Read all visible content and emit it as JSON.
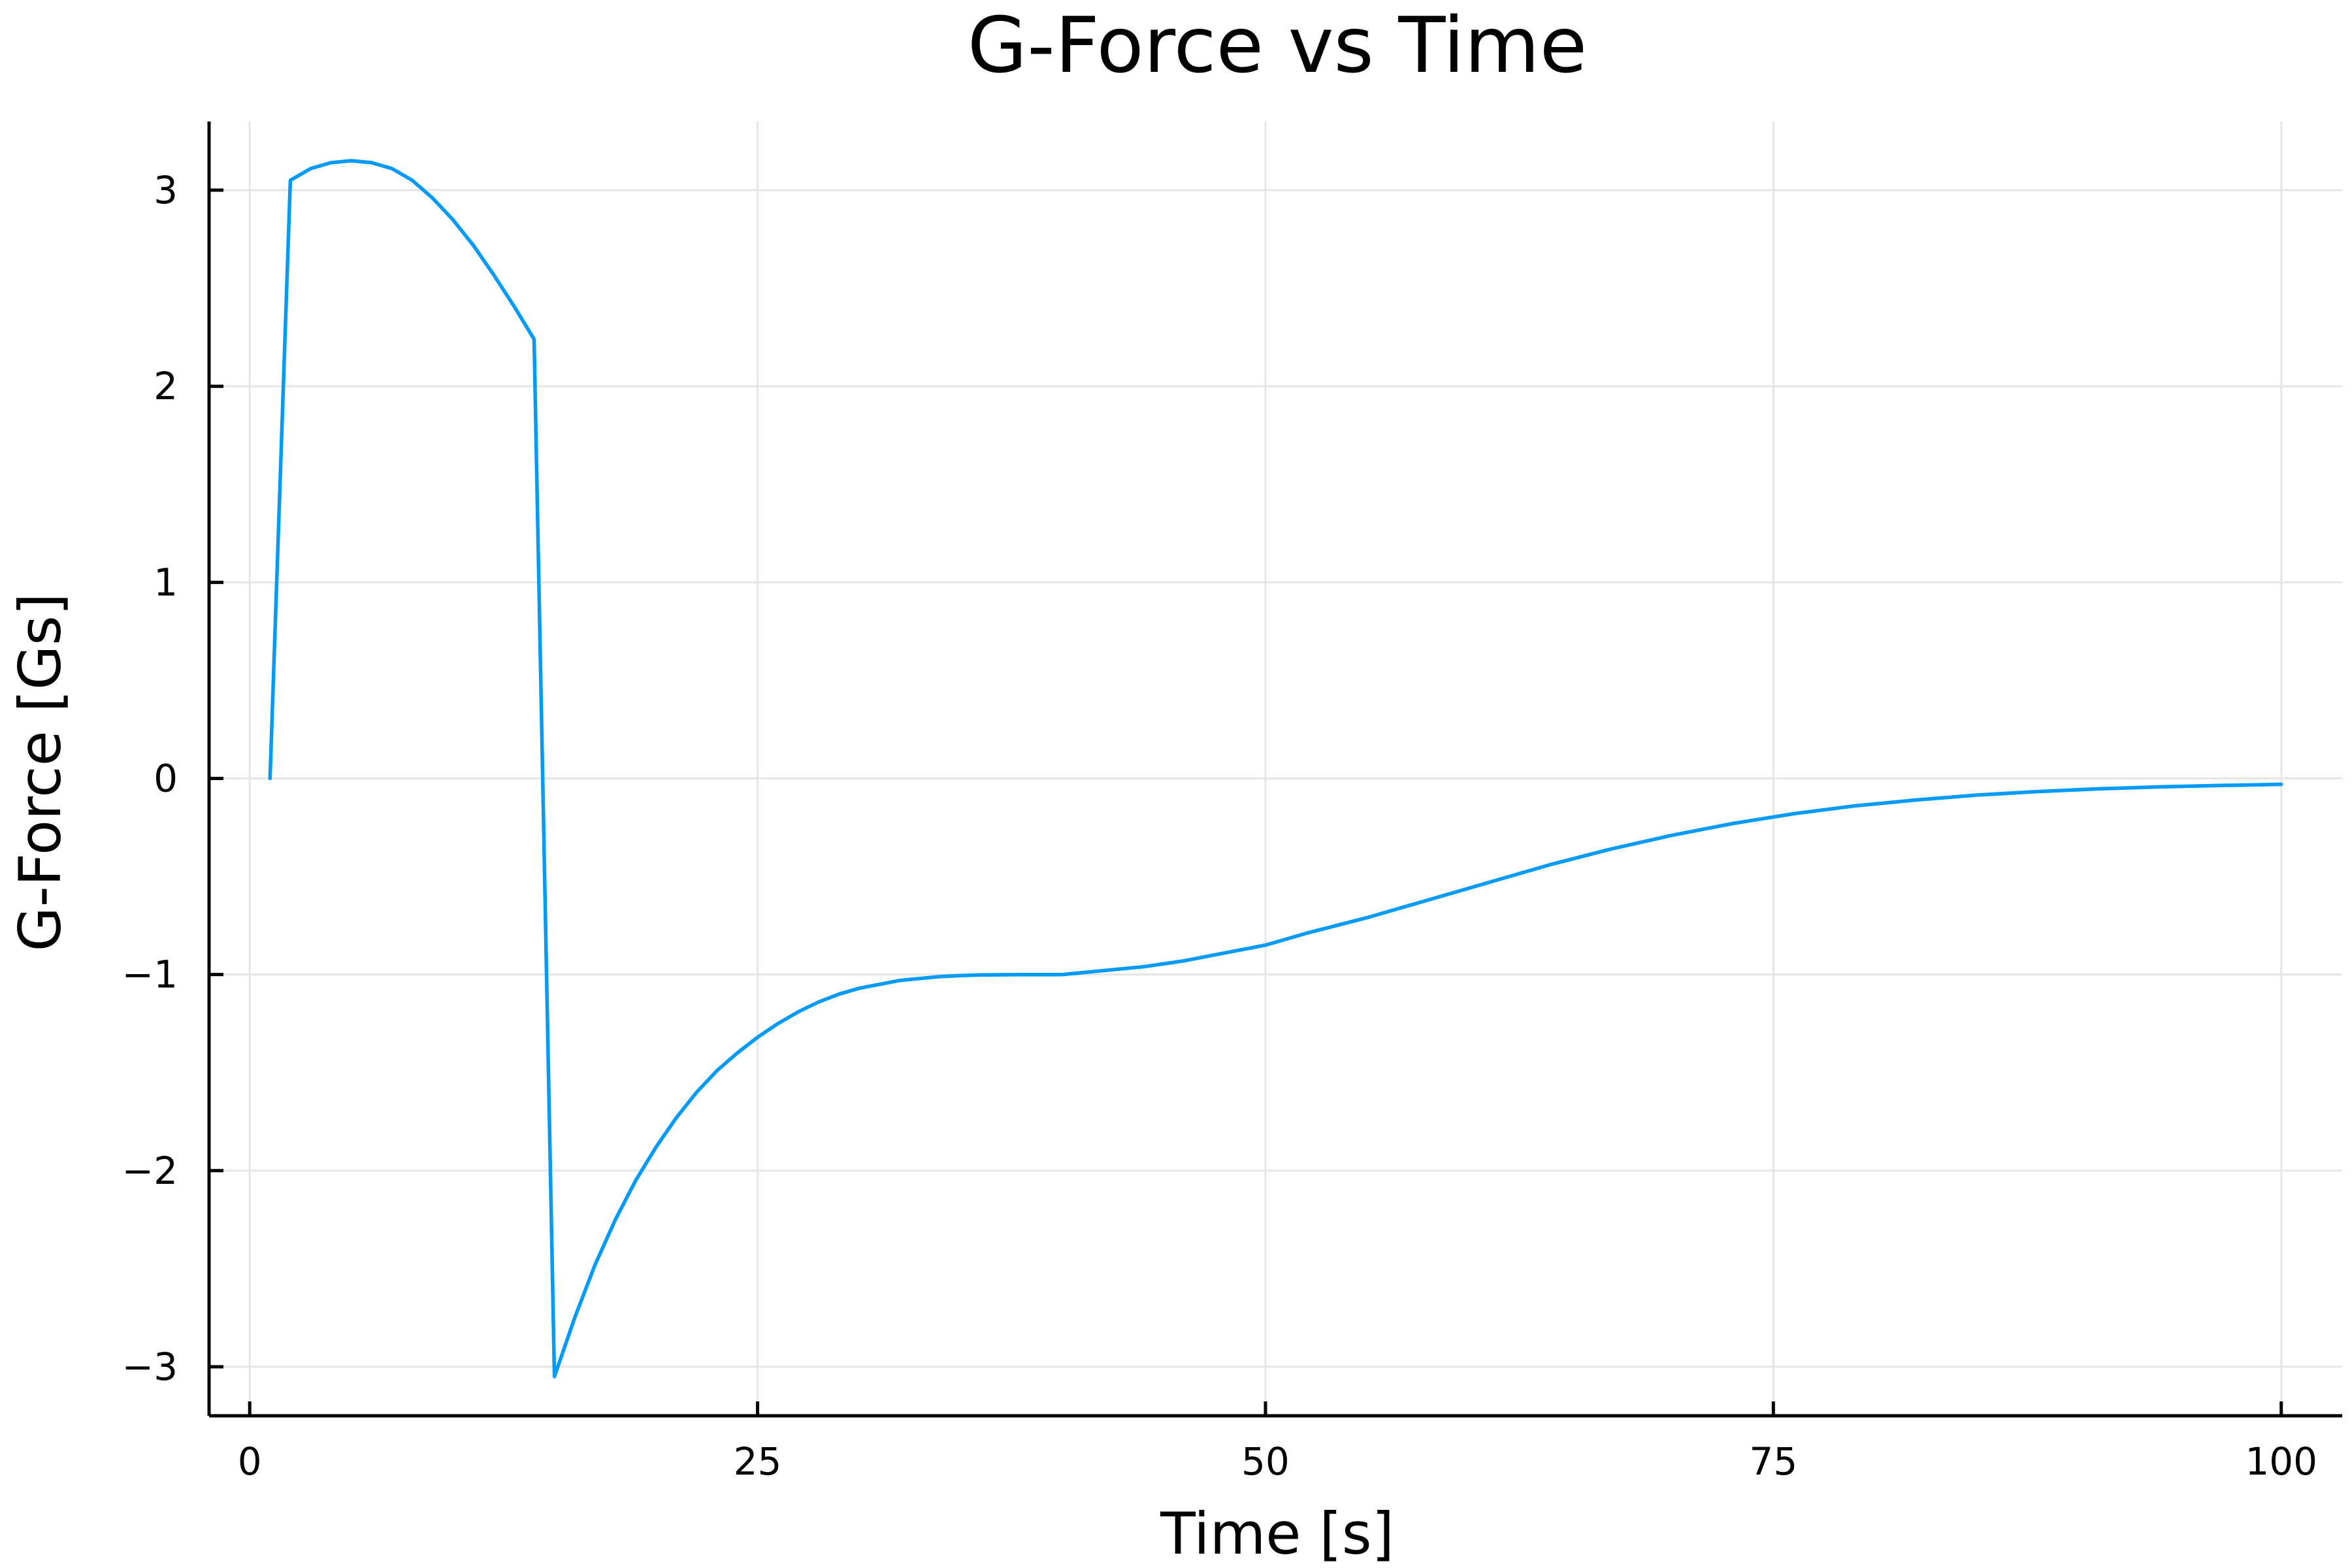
{
  "chart_data": {
    "type": "line",
    "title": "G-Force vs Time",
    "xlabel": "Time [s]",
    "ylabel": "G-Force [Gs]",
    "xlim": [
      -2,
      103
    ],
    "ylim": [
      -3.25,
      3.35
    ],
    "xticks": [
      0,
      25,
      50,
      75,
      100
    ],
    "xtick_labels": [
      "0",
      "25",
      "50",
      "75",
      "100"
    ],
    "yticks": [
      -3,
      -2,
      -1,
      0,
      1,
      2,
      3
    ],
    "ytick_labels": [
      "−3",
      "−2",
      "−1",
      "0",
      "1",
      "2",
      "3"
    ],
    "grid": true,
    "legend": "none",
    "line_color": "#009af9",
    "series": [
      {
        "x": [
          1,
          2,
          3,
          4,
          5,
          6,
          7,
          8,
          9,
          10,
          11,
          12,
          13,
          14,
          15,
          16,
          17,
          18,
          19,
          20,
          21,
          22,
          23,
          24,
          25,
          26,
          27,
          28,
          29,
          30,
          31,
          32,
          33,
          34,
          35,
          36,
          37,
          38,
          39,
          40,
          42,
          44,
          46,
          48,
          50,
          52,
          55,
          58,
          61,
          64,
          67,
          70,
          73,
          76,
          79,
          82,
          85,
          88,
          91,
          94,
          97,
          100
        ],
        "y": [
          0,
          3.05,
          3.11,
          3.14,
          3.15,
          3.14,
          3.11,
          3.05,
          2.96,
          2.85,
          2.72,
          2.57,
          2.41,
          2.24,
          -3.05,
          -2.75,
          -2.48,
          -2.25,
          -2.05,
          -1.88,
          -1.73,
          -1.6,
          -1.49,
          -1.4,
          -1.32,
          -1.25,
          -1.19,
          -1.14,
          -1.1,
          -1.07,
          -1.05,
          -1.03,
          -1.02,
          -1.01,
          -1.005,
          -1.002,
          -1.001,
          -1.0,
          -1.0,
          -1.0,
          -0.98,
          -0.96,
          -0.93,
          -0.89,
          -0.85,
          -0.79,
          -0.71,
          -0.62,
          -0.53,
          -0.44,
          -0.36,
          -0.29,
          -0.23,
          -0.18,
          -0.14,
          -0.11,
          -0.085,
          -0.067,
          -0.053,
          -0.043,
          -0.036,
          -0.03
        ]
      }
    ]
  }
}
